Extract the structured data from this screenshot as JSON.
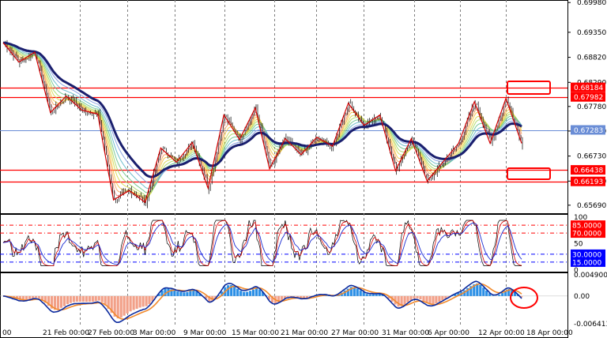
{
  "chart_data": {
    "type": "candlestick",
    "main_panel": {
      "price_ticks": [
        0.6998,
        0.6935,
        0.6882,
        0.6829,
        0.6778,
        0.6726,
        0.6673,
        0.662,
        0.6569
      ],
      "price_tick_labels": [
        "0.69980",
        "0.69350",
        "0.68820",
        "0.68290",
        "0.67780",
        "0.67260",
        "0.66730",
        "0.66200",
        "0.65690"
      ],
      "ylim": [
        0.6552,
        0.7
      ],
      "levels": [
        {
          "value": 0.68184,
          "label": "0.68184",
          "color": "#ff0000",
          "box": true
        },
        {
          "value": 0.67982,
          "label": "0.67982",
          "color": "#ff0000",
          "box": true
        },
        {
          "value": 0.67283,
          "label": "0.67283",
          "color": "#6a8dd6",
          "box": false
        },
        {
          "value": 0.66438,
          "label": "0.66438",
          "color": "#ff0000",
          "box": true
        },
        {
          "value": 0.66193,
          "label": "0.66193",
          "color": "#ff0000",
          "box": true
        }
      ],
      "zigzag_prices": [
        0.6913,
        0.6872,
        0.6893,
        0.6765,
        0.68,
        0.677,
        0.6762,
        0.658,
        0.66,
        0.6575,
        0.669,
        0.666,
        0.6702,
        0.6605,
        0.676,
        0.6708,
        0.6775,
        0.6646,
        0.671,
        0.6676,
        0.6713,
        0.6694,
        0.6785,
        0.6738,
        0.676,
        0.6642,
        0.671,
        0.662,
        0.666,
        0.67,
        0.6788,
        0.67,
        0.6795,
        0.67
      ]
    },
    "rsi_panel": {
      "ylim": [
        0,
        100
      ],
      "tick_labels": [
        "100",
        "50",
        "0"
      ],
      "levels": [
        {
          "value": 85,
          "label": "85.0000",
          "color": "#ff0000"
        },
        {
          "value": 70,
          "label": "70.0000",
          "color": "#ff0000"
        },
        {
          "value": 30,
          "label": "30.0000",
          "color": "#0000ff"
        },
        {
          "value": 15,
          "label": "15.0000",
          "color": "#0000ff"
        }
      ]
    },
    "macd_panel": {
      "ylim": [
        -0.006413,
        0.0049007
      ],
      "tick_labels": [
        "0.0049007",
        "0.00",
        "-0.006413"
      ],
      "tick_values": [
        0.0049007,
        0.0,
        -0.006413
      ]
    },
    "x_labels": [
      "00",
      "21 Feb 00:00",
      "27 Feb 00:00",
      "3 Mar 00:00",
      "9 Mar 00:00",
      "15 Mar 00:00",
      "21 Mar 00:00",
      "27 Mar 00:00",
      "31 Mar 00:00",
      "6 Apr 00:00",
      "12 Apr 00:00",
      "18 Apr 00:00"
    ],
    "colors": {
      "candle": "#000000",
      "ma_thick": "#1a1f6e",
      "zigzag": "#d40000",
      "hist_up": "#2b8fe6",
      "hist_down": "#f2a088",
      "macd_line": "#0b2a9e",
      "signal_line": "#f28a2b",
      "grid": "#7f7f7f",
      "annotation": "#ff0000"
    }
  }
}
